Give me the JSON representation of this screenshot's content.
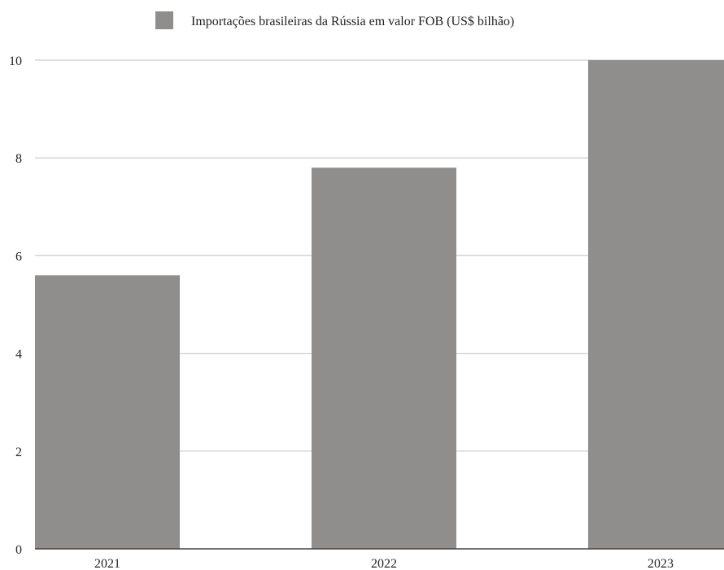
{
  "chart_data": {
    "type": "bar",
    "categories": [
      "2021",
      "2022",
      "2023"
    ],
    "series": [
      {
        "name": "Importações brasileiras da Rússia em valor FOB (US$ bilhão)",
        "values": [
          5.6,
          7.8,
          10.0
        ],
        "color": "#8f8e8c"
      }
    ],
    "ylim": [
      0,
      10
    ],
    "yticks": [
      0,
      2,
      4,
      6,
      8,
      10
    ],
    "grid": true,
    "legend_position": "top-center",
    "title": "",
    "xlabel": "",
    "ylabel": ""
  }
}
